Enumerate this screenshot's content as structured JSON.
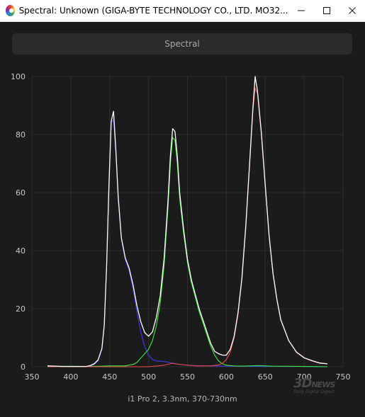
{
  "window": {
    "title": "Spectral: Unknown (GIGA-BYTE TECHNOLOGY CO., LTD. MO32...",
    "minimize_icon": "minimize-icon",
    "maximize_icon": "maximize-icon",
    "close_icon": "close-icon"
  },
  "tab": {
    "label": "Spectral"
  },
  "footer": {
    "text": "i1 Pro 2, 3.3nm, 370-730nm"
  },
  "watermark": {
    "main": "3D",
    "news": "NEWS",
    "sub": "Daily Digital Digest"
  },
  "colors": {
    "background": "#1b1b1b",
    "grid": "#2e2e2e",
    "blue": "#3a3af5",
    "green": "#3ee83e",
    "red": "#f04848",
    "total": "#ffffff"
  },
  "chart_data": {
    "type": "line",
    "xlim": [
      350,
      750
    ],
    "ylim": [
      0,
      100
    ],
    "xticks": [
      350,
      400,
      450,
      500,
      550,
      600,
      650,
      700,
      750
    ],
    "yticks": [
      0,
      20,
      40,
      60,
      80,
      100
    ],
    "grid": true,
    "series": [
      {
        "key": "blue",
        "color": "#3a3af5",
        "x": [
          370,
          390,
          410,
          420,
          425,
          430,
          435,
          440,
          443,
          446,
          449,
          452,
          455,
          458,
          461,
          465,
          470,
          475,
          480,
          485,
          490,
          495,
          500,
          505,
          510,
          520,
          530,
          540,
          550,
          570,
          600,
          650,
          700,
          730
        ],
        "y": [
          0,
          0,
          0,
          0,
          0.3,
          0.8,
          2,
          6,
          14,
          34,
          62,
          84,
          85,
          74,
          58,
          44,
          37,
          33,
          27,
          19,
          12,
          7,
          4,
          2.5,
          2,
          1.8,
          1.3,
          0.8,
          0.5,
          0.3,
          0.2,
          0.1,
          0.1,
          0
        ]
      },
      {
        "key": "green",
        "color": "#3ee83e",
        "x": [
          370,
          380,
          420,
          440,
          450,
          460,
          470,
          480,
          485,
          490,
          495,
          500,
          505,
          510,
          515,
          520,
          525,
          528,
          531,
          534,
          537,
          540,
          545,
          550,
          555,
          560,
          565,
          570,
          575,
          580,
          585,
          590,
          595,
          600,
          610,
          620,
          640,
          660,
          700,
          730
        ],
        "y": [
          0.3,
          0.2,
          0.1,
          0.2,
          0.3,
          0.3,
          0.3,
          0.8,
          1.5,
          3,
          4.5,
          6,
          9,
          14,
          22,
          35,
          55,
          70,
          79,
          78,
          70,
          58,
          46,
          36,
          29,
          24,
          19,
          15,
          11,
          7,
          4,
          2,
          1,
          0.5,
          0.3,
          0.2,
          0.4,
          0.2,
          0.1,
          0
        ]
      },
      {
        "key": "red",
        "color": "#f04848",
        "x": [
          370,
          500,
          520,
          530,
          540,
          560,
          580,
          590,
          595,
          600,
          605,
          610,
          615,
          620,
          625,
          630,
          634,
          637,
          640,
          645,
          650,
          655,
          660,
          665,
          670,
          680,
          690,
          700,
          710,
          720,
          730
        ],
        "y": [
          0,
          0,
          0.5,
          1.2,
          0.8,
          0.3,
          0.3,
          0.6,
          1.2,
          2.5,
          5,
          10,
          18,
          30,
          48,
          70,
          88,
          96,
          94,
          80,
          62,
          45,
          32,
          23,
          16,
          9,
          5,
          3,
          2,
          1.2,
          1
        ]
      },
      {
        "key": "total",
        "color": "#ffffff",
        "x": [
          370,
          390,
          410,
          420,
          425,
          430,
          435,
          440,
          443,
          446,
          449,
          452,
          455,
          458,
          461,
          465,
          470,
          475,
          480,
          485,
          490,
          495,
          500,
          505,
          510,
          515,
          520,
          525,
          528,
          531,
          534,
          537,
          540,
          545,
          550,
          555,
          560,
          565,
          570,
          575,
          580,
          585,
          590,
          595,
          600,
          605,
          610,
          615,
          620,
          625,
          630,
          634,
          637,
          640,
          645,
          650,
          655,
          660,
          665,
          670,
          680,
          690,
          700,
          710,
          720,
          730
        ],
        "y": [
          0.3,
          0.1,
          0.1,
          0.1,
          0.4,
          1,
          2.3,
          6.3,
          14.3,
          34.4,
          62.4,
          84.5,
          88,
          74.5,
          58.5,
          44.5,
          37.5,
          34,
          28.2,
          21,
          15.5,
          11.8,
          10.5,
          12,
          17,
          24.5,
          37.5,
          57.5,
          72.5,
          82,
          81,
          72.5,
          60,
          47.5,
          37,
          30,
          25,
          20,
          16,
          12,
          8,
          5.3,
          4.5,
          4,
          4,
          6,
          10.5,
          18.5,
          30.5,
          48.5,
          70.5,
          88.5,
          100,
          95,
          80.5,
          62.4,
          45.2,
          32.2,
          23.2,
          16.2,
          9.1,
          5.1,
          3.1,
          2.1,
          1.3,
          1
        ]
      }
    ]
  }
}
